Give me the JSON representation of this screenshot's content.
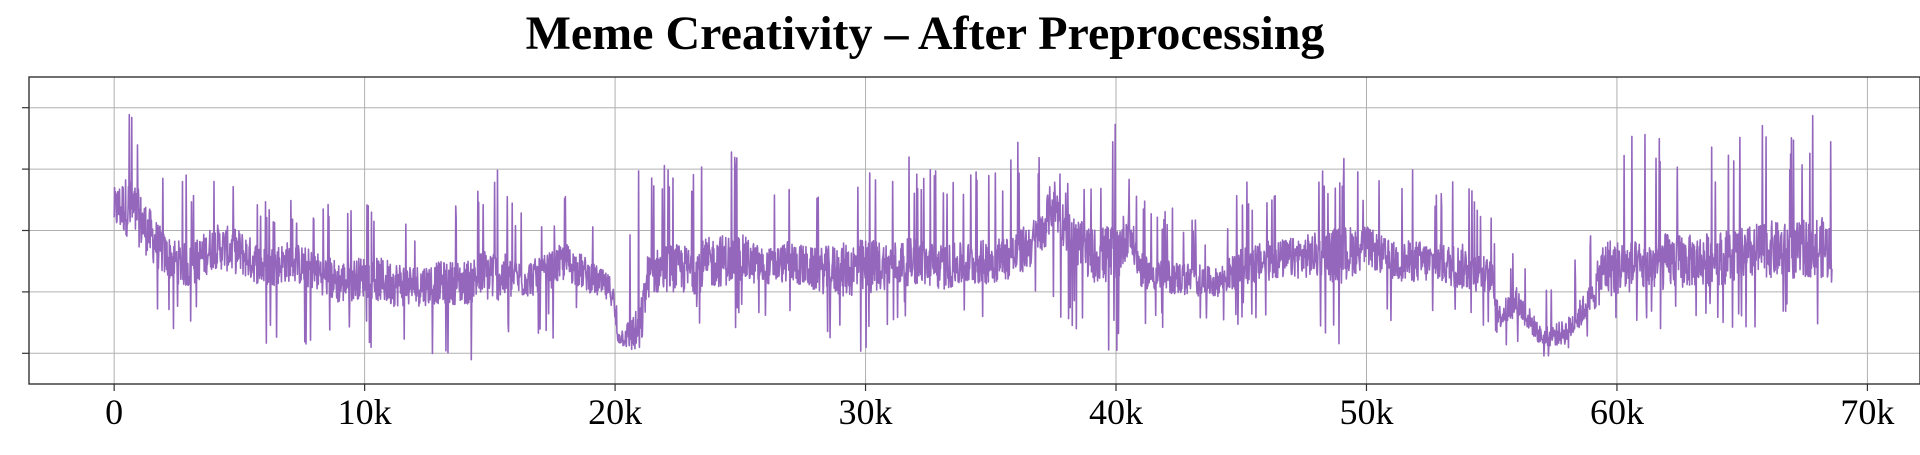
{
  "chart_data": {
    "type": "line",
    "title": "Meme Creativity – After Preprocessing",
    "xlabel": "",
    "ylabel": "",
    "xlim": [
      -3400,
      72100
    ],
    "ylim": [
      0,
      100
    ],
    "x_ticks": [
      0,
      10000,
      20000,
      30000,
      40000,
      50000,
      60000,
      70000
    ],
    "x_tick_labels": [
      "0",
      "10k",
      "20k",
      "30k",
      "40k",
      "50k",
      "60k",
      "70k"
    ],
    "y_ticks": [
      10,
      30,
      50,
      70,
      90
    ],
    "y_tick_labels_visible": false,
    "grid": true,
    "line_color": "#9467bd",
    "series": [
      {
        "x": [
          0,
          500,
          900,
          2000,
          3000,
          4000,
          5000,
          6000,
          7000,
          8000,
          9000,
          10000,
          11000,
          12000,
          13000,
          14000,
          15000,
          16000,
          17000,
          18000,
          19000,
          19900,
          20100,
          21000,
          21300,
          22000,
          23000,
          24000,
          25000,
          26000,
          27000,
          28000,
          29000,
          30000,
          31000,
          32000,
          33000,
          34000,
          35000,
          36000,
          37000,
          37500,
          38000,
          39000,
          40000,
          40500,
          41000,
          42000,
          43000,
          44000,
          45000,
          46000,
          47000,
          48000,
          49000,
          50000,
          51000,
          52000,
          53000,
          54000,
          55000,
          55300,
          56000,
          57000,
          58000,
          59000,
          59500,
          60000,
          61000,
          62000,
          63000,
          64000,
          65000,
          66000,
          67000,
          68000,
          68600
        ],
        "y": [
          57,
          58,
          55,
          42,
          38,
          45,
          43,
          38,
          40,
          37,
          33,
          35,
          33,
          32,
          33,
          33,
          36,
          34,
          35,
          40,
          35,
          30,
          15,
          17,
          35,
          38,
          37,
          40,
          41,
          38,
          40,
          37,
          37,
          38,
          39,
          40,
          38,
          39,
          40,
          42,
          48,
          60,
          50,
          42,
          42,
          50,
          37,
          35,
          34,
          33,
          38,
          40,
          41,
          42,
          42,
          45,
          40,
          40,
          39,
          38,
          35,
          22,
          27,
          15,
          17,
          28,
          38,
          38,
          38,
          40,
          40,
          41,
          42,
          44,
          43,
          45,
          43
        ],
        "min": [
          21,
          25,
          18,
          18,
          18,
          20,
          17,
          12,
          13,
          10,
          8,
          12,
          10,
          6,
          8,
          7,
          10,
          13,
          12,
          17,
          16,
          6,
          10,
          12,
          19,
          18,
          18,
          17,
          16,
          22,
          18,
          18,
          8,
          6,
          20,
          20,
          20,
          20,
          22,
          25,
          25,
          20,
          20,
          10,
          7,
          22,
          20,
          18,
          17,
          16,
          20,
          20,
          20,
          15,
          5,
          20,
          20,
          22,
          20,
          20,
          18,
          12,
          10,
          8,
          10,
          12,
          8,
          15,
          22,
          15,
          20,
          18,
          17,
          17,
          18,
          18,
          20
        ],
        "max": [
          71,
          97,
          87,
          70,
          70,
          73,
          72,
          60,
          62,
          57,
          61,
          60,
          66,
          56,
          58,
          60,
          76,
          61,
          55,
          63,
          55,
          40,
          22,
          75,
          70,
          75,
          77,
          80,
          75,
          65,
          67,
          70,
          72,
          75,
          75,
          76,
          74,
          72,
          75,
          80,
          81,
          78,
          70,
          72,
          85,
          75,
          60,
          58,
          57,
          50,
          66,
          67,
          68,
          69,
          75,
          67,
          66,
          72,
          67,
          76,
          55,
          40,
          45,
          30,
          40,
          50,
          83,
          80,
          83,
          83,
          82,
          82,
          82,
          85,
          84,
          89,
          94
        ]
      }
    ]
  }
}
